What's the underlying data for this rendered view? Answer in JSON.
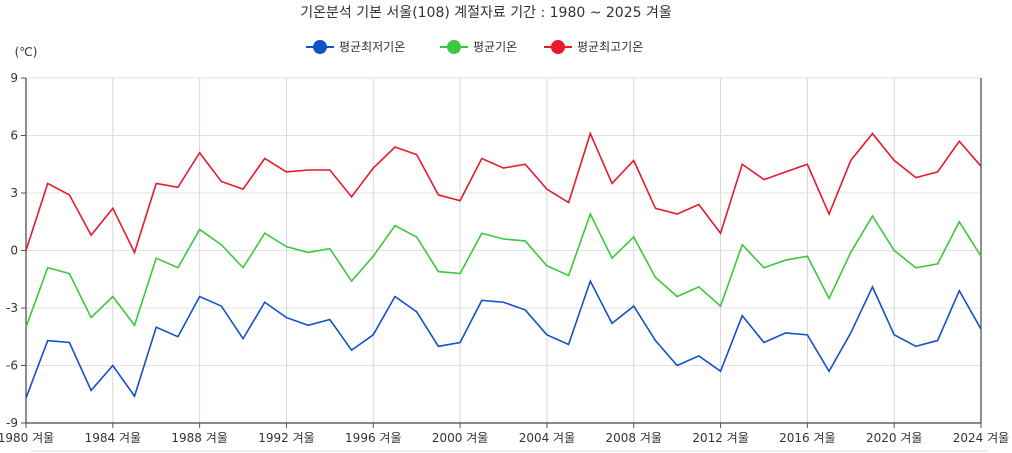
{
  "chart_data": {
    "type": "line",
    "title": "기온분석 기본 서울(108) 계절자료 기간 : 1980 ~ 2025 겨울",
    "ylabel": "(℃)",
    "xlabel": "",
    "ylim": [
      -9,
      9
    ],
    "yticks": [
      9,
      6,
      3,
      0,
      -3,
      -6,
      -9
    ],
    "grid": true,
    "legend_position": "top-center",
    "x": [
      "1980 겨울",
      "1981 겨울",
      "1982 겨울",
      "1983 겨울",
      "1984 겨울",
      "1985 겨울",
      "1986 겨울",
      "1987 겨울",
      "1988 겨울",
      "1989 겨울",
      "1990 겨울",
      "1991 겨울",
      "1992 겨울",
      "1993 겨울",
      "1994 겨울",
      "1995 겨울",
      "1996 겨울",
      "1997 겨울",
      "1998 겨울",
      "1999 겨울",
      "2000 겨울",
      "2001 겨울",
      "2002 겨울",
      "2003 겨울",
      "2004 겨울",
      "2005 겨울",
      "2006 겨울",
      "2007 겨울",
      "2008 겨울",
      "2009 겨울",
      "2010 겨울",
      "2011 겨울",
      "2012 겨울",
      "2013 겨울",
      "2014 겨울",
      "2015 겨울",
      "2016 겨울",
      "2017 겨울",
      "2018 겨울",
      "2019 겨울",
      "2020 겨울",
      "2021 겨울",
      "2022 겨울",
      "2023 겨울",
      "2024 겨울"
    ],
    "x_tick_labels": [
      "1980 겨울",
      "1984 겨울",
      "1988 겨울",
      "1992 겨울",
      "1996 겨울",
      "2000 겨울",
      "2004 겨울",
      "2008 겨울",
      "2012 겨울",
      "2016 겨울",
      "2020 겨울",
      "2024 겨울"
    ],
    "series": [
      {
        "name": "평균최저기온",
        "color": "#1451c8",
        "values": [
          -7.7,
          -4.7,
          -4.8,
          -7.3,
          -6.0,
          -7.6,
          -4.0,
          -4.5,
          -2.4,
          -2.9,
          -4.6,
          -2.7,
          -3.5,
          -3.9,
          -3.6,
          -5.2,
          -4.4,
          -2.4,
          -3.2,
          -5.0,
          -4.8,
          -2.6,
          -2.7,
          -3.1,
          -4.4,
          -4.9,
          -1.6,
          -3.8,
          -2.9,
          -4.7,
          -6.0,
          -5.5,
          -6.3,
          -3.4,
          -4.8,
          -4.3,
          -4.4,
          -6.3,
          -4.3,
          -1.9,
          -4.4,
          -5.0,
          -4.7,
          -2.1,
          -4.1
        ]
      },
      {
        "name": "평균기온",
        "color": "#3cc83c",
        "values": [
          -4.0,
          -0.9,
          -1.2,
          -3.5,
          -2.4,
          -3.9,
          -0.4,
          -0.9,
          1.1,
          0.3,
          -0.9,
          0.9,
          0.2,
          -0.1,
          0.1,
          -1.6,
          -0.3,
          1.3,
          0.7,
          -1.1,
          -1.2,
          0.9,
          0.6,
          0.5,
          -0.8,
          -1.3,
          1.9,
          -0.4,
          0.7,
          -1.4,
          -2.4,
          -1.9,
          -2.9,
          0.3,
          -0.9,
          -0.5,
          -0.3,
          -2.5,
          -0.1,
          1.8,
          0.0,
          -0.9,
          -0.7,
          1.5,
          -0.3
        ]
      },
      {
        "name": "평균최고기온",
        "color": "#e8192c",
        "values": [
          0.0,
          3.5,
          2.9,
          0.8,
          2.2,
          -0.1,
          3.5,
          3.3,
          5.1,
          3.6,
          3.2,
          4.8,
          4.1,
          4.2,
          4.2,
          2.8,
          4.3,
          5.4,
          5.0,
          2.9,
          2.6,
          4.8,
          4.3,
          4.5,
          3.2,
          2.5,
          6.1,
          3.5,
          4.7,
          2.2,
          1.9,
          2.4,
          0.9,
          4.5,
          3.7,
          4.1,
          4.5,
          1.9,
          4.7,
          6.1,
          4.7,
          3.8,
          4.1,
          5.7,
          4.4
        ]
      }
    ]
  }
}
